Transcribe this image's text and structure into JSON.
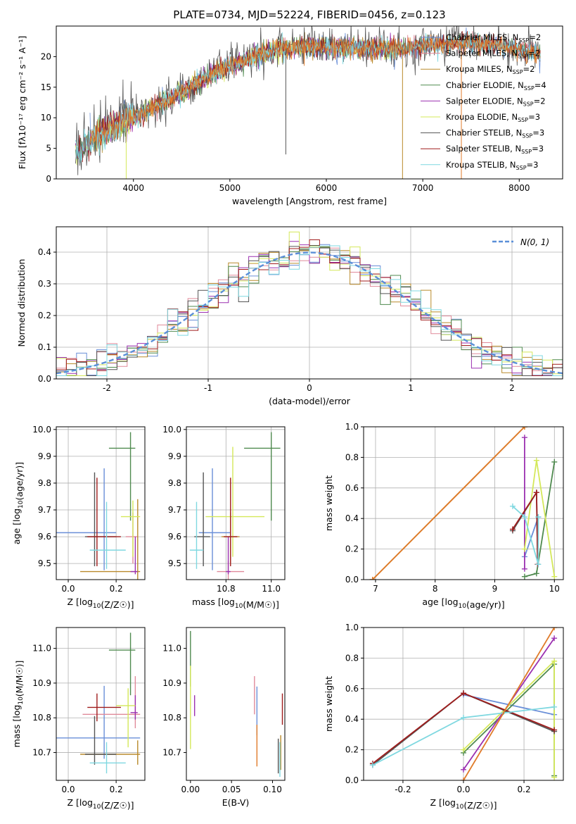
{
  "title": "PLATE=0734, MJD=52224, FIBERID=0456, z=0.123",
  "colors": {
    "Chabrier MILES": "#6a8fd8",
    "Salpeter MILES": "#e08a9a",
    "Kroupa MILES": "#b98a2b",
    "Chabrier ELODIE": "#4f8a4f",
    "Salpeter ELODIE": "#9b30b0",
    "Kroupa ELODIE": "#d4e85a",
    "Chabrier STELIB": "#555555",
    "Salpeter STELIB": "#a01c1c",
    "Kroupa STELIB": "#7fd8e0",
    "orange": "#e07b2a",
    "normal": "#5b8fd8"
  },
  "chart_data": [
    {
      "type": "line",
      "id": "spectrum",
      "xlabel": "wavelength [Angstrom, rest frame]",
      "ylabel": "Flux [fλ10⁻¹⁷ erg cm⁻² s⁻¹ A⁻¹]",
      "xlim": [
        3200,
        8450
      ],
      "ylim": [
        0,
        25
      ],
      "xticks": [
        4000,
        5000,
        6000,
        7000,
        8000
      ],
      "yticks": [
        0,
        5,
        10,
        15,
        20
      ],
      "grid": false,
      "legend_position": "right",
      "legend": [
        {
          "label": "Chabrier MILES, N_SSP=2",
          "color": "Chabrier MILES"
        },
        {
          "label": "Salpeter MILES, N_SSP=2",
          "color": "Salpeter MILES"
        },
        {
          "label": "Kroupa MILES, N_SSP=2",
          "color": "Kroupa MILES"
        },
        {
          "label": "Chabrier ELODIE, N_SSP=4",
          "color": "Chabrier ELODIE"
        },
        {
          "label": "Salpeter ELODIE, N_SSP=2",
          "color": "Salpeter ELODIE"
        },
        {
          "label": "Kroupa ELODIE, N_SSP=3",
          "color": "Kroupa ELODIE"
        },
        {
          "label": "Chabrier STELIB, N_SSP=3",
          "color": "Chabrier STELIB"
        },
        {
          "label": "Salpeter STELIB, N_SSP=3",
          "color": "Salpeter STELIB"
        },
        {
          "label": "Kroupa STELIB, N_SSP=3",
          "color": "Kroupa STELIB"
        }
      ],
      "continuum": [
        [
          3400,
          4.2
        ],
        [
          3600,
          6.8
        ],
        [
          3800,
          8.6
        ],
        [
          3950,
          9.8
        ],
        [
          4100,
          10.8
        ],
        [
          4300,
          12.4
        ],
        [
          4500,
          14.2
        ],
        [
          4700,
          16.0
        ],
        [
          4900,
          17.8
        ],
        [
          5100,
          19.0
        ],
        [
          5300,
          20.3
        ],
        [
          5500,
          21.2
        ],
        [
          5800,
          21.6
        ],
        [
          6000,
          21.5
        ],
        [
          6200,
          21.4
        ],
        [
          6500,
          21.2
        ],
        [
          6800,
          21.3
        ],
        [
          7000,
          21.9
        ],
        [
          7200,
          22.0
        ],
        [
          7400,
          22.3
        ],
        [
          7700,
          22.0
        ],
        [
          8000,
          21.2
        ],
        [
          8200,
          20.5
        ]
      ],
      "features": [
        {
          "x": 3925,
          "y": 0,
          "series": "Kroupa ELODIE"
        },
        {
          "x": 5580,
          "y": 4,
          "series": "Chabrier STELIB"
        },
        {
          "x": 6790,
          "y": 0,
          "series": "Kroupa MILES"
        },
        {
          "x": 7400,
          "y": 0,
          "series": "orange"
        }
      ]
    },
    {
      "type": "line",
      "id": "residuals",
      "xlabel": "(data-model)/error",
      "ylabel": "Normed distribution",
      "xlim": [
        -2.5,
        2.5
      ],
      "ylim": [
        0,
        0.48
      ],
      "xticks": [
        -2,
        -1,
        0,
        1,
        2
      ],
      "yticks": [
        0.0,
        0.1,
        0.2,
        0.3,
        0.4
      ],
      "grid": true,
      "legend_position": "top-right",
      "legend": [
        {
          "label": "N(0, 1)",
          "color": "normal"
        }
      ],
      "step": 0.1,
      "series": [
        "Chabrier MILES",
        "Salpeter MILES",
        "Kroupa MILES",
        "Chabrier ELODIE",
        "Salpeter ELODIE",
        "Kroupa ELODIE",
        "Chabrier STELIB",
        "Salpeter STELIB",
        "Kroupa STELIB"
      ]
    },
    {
      "type": "scatter",
      "id": "age-vs-Z",
      "xlabel": "Z [log10(Z/Z☉)]",
      "ylabel": "age  [log10(age/yr)]",
      "xlim": [
        -0.05,
        0.32
      ],
      "ylim": [
        9.44,
        10.01
      ],
      "xticks": [
        0.0,
        0.2
      ],
      "yticks": [
        9.5,
        9.6,
        9.7,
        9.8,
        9.9,
        10.0
      ],
      "grid": true,
      "points": [
        {
          "series": "Chabrier MILES",
          "x": 0.15,
          "y": 9.615,
          "xerr": [
            0.2,
            0.05
          ],
          "yerr": [
            0.14,
            0.24
          ]
        },
        {
          "series": "Salpeter MILES",
          "x": 0.27,
          "y": 9.6,
          "xerr": [
            0.03,
            0.02
          ],
          "yerr": [
            0.1,
            0.09
          ]
        },
        {
          "series": "Kroupa MILES",
          "x": 0.29,
          "y": 9.47,
          "xerr": [
            0.24,
            0.01
          ],
          "yerr": [
            0.03,
            0.27
          ]
        },
        {
          "series": "Chabrier ELODIE",
          "x": 0.26,
          "y": 9.93,
          "xerr": [
            0.09,
            0.02
          ],
          "yerr": [
            0.27,
            0.06
          ]
        },
        {
          "series": "Salpeter ELODIE",
          "x": 0.28,
          "y": 9.47,
          "xerr": [
            0.02,
            0.01
          ],
          "yerr": [
            0.01,
            0.13
          ]
        },
        {
          "series": "Kroupa ELODIE",
          "x": 0.27,
          "y": 9.675,
          "xerr": [
            0.05,
            0.03
          ],
          "yerr": [
            0.15,
            0.06
          ]
        },
        {
          "series": "Chabrier STELIB",
          "x": 0.11,
          "y": 9.6,
          "xerr": [
            0.04,
            0.09
          ],
          "yerr": [
            0.11,
            0.24
          ]
        },
        {
          "series": "Salpeter STELIB",
          "x": 0.12,
          "y": 9.6,
          "xerr": [
            0.04,
            0.1
          ],
          "yerr": [
            0.11,
            0.22
          ]
        },
        {
          "series": "Kroupa STELIB",
          "x": 0.16,
          "y": 9.55,
          "xerr": [
            0.07,
            0.08
          ],
          "yerr": [
            0.07,
            0.18
          ]
        }
      ]
    },
    {
      "type": "scatter",
      "id": "age-vs-mass",
      "xlabel": "mass [log10(M/M☉)]",
      "ylabel": "",
      "xlim": [
        10.625,
        11.06
      ],
      "ylim": [
        9.44,
        10.01
      ],
      "xticks": [
        10.8,
        11.0
      ],
      "yticks": [
        9.5,
        9.6,
        9.7,
        9.8,
        9.9,
        10.0
      ],
      "grid": true,
      "points": [
        {
          "series": "Chabrier MILES",
          "x": 10.74,
          "y": 9.615,
          "xerr": [
            0.06,
            0.08
          ],
          "yerr": [
            0.14,
            0.24
          ]
        },
        {
          "series": "Salpeter MILES",
          "x": 10.81,
          "y": 9.47,
          "xerr": [
            0.05,
            0.07
          ],
          "yerr": [
            0.03,
            0.04
          ]
        },
        {
          "series": "Kroupa MILES",
          "x": 10.82,
          "y": 9.6,
          "xerr": [
            0.04,
            0.04
          ],
          "yerr": [
            0.1,
            0.09
          ]
        },
        {
          "series": "Chabrier ELODIE",
          "x": 11.0,
          "y": 9.93,
          "xerr": [
            0.12,
            0.04
          ],
          "yerr": [
            0.27,
            0.06
          ]
        },
        {
          "series": "Salpeter ELODIE",
          "x": 10.81,
          "y": 9.47,
          "xerr": [
            0.01,
            0.01
          ],
          "yerr": [
            0.01,
            0.13
          ]
        },
        {
          "series": "Kroupa ELODIE",
          "x": 10.83,
          "y": 9.675,
          "xerr": [
            0.12,
            0.14
          ],
          "yerr": [
            0.15,
            0.26
          ]
        },
        {
          "series": "Chabrier STELIB",
          "x": 10.7,
          "y": 9.6,
          "xerr": [
            0.04,
            0.03
          ],
          "yerr": [
            0.11,
            0.24
          ]
        },
        {
          "series": "Salpeter STELIB",
          "x": 10.82,
          "y": 9.6,
          "xerr": [
            0.03,
            0.03
          ],
          "yerr": [
            0.11,
            0.22
          ]
        },
        {
          "series": "Kroupa STELIB",
          "x": 10.67,
          "y": 9.55,
          "xerr": [
            0.03,
            0.03
          ],
          "yerr": [
            0.07,
            0.18
          ]
        }
      ]
    },
    {
      "type": "line",
      "id": "weight-vs-age",
      "xlabel": "age  [log10(age/yr)]",
      "ylabel": "mass weight",
      "xlim": [
        6.8,
        10.15
      ],
      "ylim": [
        0,
        1
      ],
      "xticks": [
        7,
        8,
        9,
        10
      ],
      "yticks": [
        0.0,
        0.2,
        0.4,
        0.6,
        0.8,
        1.0
      ],
      "grid": true,
      "series": [
        {
          "name": "Chabrier MILES",
          "x": [
            9.5,
            9.73
          ],
          "y": [
            0.15,
            0.41
          ]
        },
        {
          "name": "Kroupa MILES",
          "x": [
            6.95,
            9.5
          ],
          "y": [
            0.0,
            1.0
          ]
        },
        {
          "name": "Chabrier ELODIE",
          "x": [
            9.5,
            9.7,
            10.0
          ],
          "y": [
            0.02,
            0.04,
            0.77
          ]
        },
        {
          "name": "Salpeter ELODIE",
          "x": [
            9.5,
            9.5
          ],
          "y": [
            0.07,
            0.93
          ]
        },
        {
          "name": "Kroupa ELODIE",
          "x": [
            9.5,
            9.7,
            10.0
          ],
          "y": [
            0.2,
            0.78,
            0.02
          ]
        },
        {
          "name": "Chabrier STELIB",
          "x": [
            9.3,
            9.7,
            9.72
          ],
          "y": [
            0.32,
            0.57,
            0.1
          ]
        },
        {
          "name": "Salpeter STELIB",
          "x": [
            9.3,
            9.7,
            9.72
          ],
          "y": [
            0.33,
            0.57,
            0.1
          ]
        },
        {
          "name": "Kroupa STELIB",
          "x": [
            9.3,
            9.5,
            9.73,
            9.73
          ],
          "y": [
            0.48,
            0.41,
            0.1,
            0.41
          ]
        },
        {
          "name": "orange",
          "x": [
            6.95,
            9.5
          ],
          "y": [
            0.0,
            1.0
          ]
        }
      ]
    },
    {
      "type": "scatter",
      "id": "mass-vs-Z",
      "xlabel": "Z [log10(Z/Z☉)]",
      "ylabel": "mass [log10(M/M☉)]",
      "xlim": [
        -0.05,
        0.32
      ],
      "ylim": [
        10.62,
        11.06
      ],
      "xticks": [
        0.0,
        0.2
      ],
      "yticks": [
        10.7,
        10.8,
        10.9,
        11.0
      ],
      "grid": true,
      "points": [
        {
          "series": "Chabrier MILES",
          "x": 0.15,
          "y": 10.742,
          "xerr": [
            0.2,
            0.15
          ],
          "yerr": [
            0.06,
            0.15
          ]
        },
        {
          "series": "Salpeter MILES",
          "x": 0.28,
          "y": 10.81,
          "xerr": [
            0.22,
            0.02
          ],
          "yerr": [
            0.04,
            0.11
          ]
        },
        {
          "series": "Kroupa MILES",
          "x": 0.29,
          "y": 10.695,
          "xerr": [
            0.24,
            0.01
          ],
          "yerr": [
            0.03,
            0.04
          ]
        },
        {
          "series": "Chabrier ELODIE",
          "x": 0.26,
          "y": 10.995,
          "xerr": [
            0.09,
            0.02
          ],
          "yerr": [
            0.13,
            0.05
          ]
        },
        {
          "series": "Salpeter ELODIE",
          "x": 0.28,
          "y": 10.815,
          "xerr": [
            0.02,
            0.01
          ],
          "yerr": [
            0.02,
            0.05
          ]
        },
        {
          "series": "Kroupa ELODIE",
          "x": 0.25,
          "y": 10.835,
          "xerr": [
            0.05,
            0.03
          ],
          "yerr": [
            0.12,
            0.05
          ]
        },
        {
          "series": "Chabrier STELIB",
          "x": 0.11,
          "y": 10.695,
          "xerr": [
            0.04,
            0.09
          ],
          "yerr": [
            0.03,
            0.11
          ]
        },
        {
          "series": "Salpeter STELIB",
          "x": 0.12,
          "y": 10.83,
          "xerr": [
            0.04,
            0.1
          ],
          "yerr": [
            0.04,
            0.04
          ]
        },
        {
          "series": "Kroupa STELIB",
          "x": 0.16,
          "y": 10.67,
          "xerr": [
            0.07,
            0.08
          ],
          "yerr": [
            0.03,
            0.06
          ]
        }
      ]
    },
    {
      "type": "scatter",
      "id": "mass-vs-ebv",
      "xlabel": "E(B-V)",
      "ylabel": "",
      "xlim": [
        -0.005,
        0.115
      ],
      "ylim": [
        10.62,
        11.06
      ],
      "xticks": [
        0.0,
        0.05,
        0.1
      ],
      "yticks": [
        10.7,
        10.8,
        10.9,
        11.0
      ],
      "grid": false,
      "points": [
        {
          "series": "Chabrier MILES",
          "x": 0.081,
          "y": 10.79,
          "yerr": [
            0.04,
            0.1
          ]
        },
        {
          "series": "Salpeter MILES",
          "x": 0.078,
          "y": 10.86,
          "yerr": [
            0.05,
            0.06
          ]
        },
        {
          "series": "Kroupa MILES",
          "x": 0.11,
          "y": 10.7,
          "yerr": [
            0.05,
            0.05
          ]
        },
        {
          "series": "Chabrier ELODIE",
          "x": 0.0,
          "y": 10.95,
          "yerr": [
            0.06,
            0.1
          ]
        },
        {
          "series": "Salpeter ELODIE",
          "x": 0.005,
          "y": 10.835,
          "yerr": [
            0.03,
            0.03
          ]
        },
        {
          "series": "Kroupa ELODIE",
          "x": 0.0,
          "y": 10.8,
          "yerr": [
            0.09,
            0.15
          ]
        },
        {
          "series": "Chabrier STELIB",
          "x": 0.107,
          "y": 10.69,
          "yerr": [
            0.05,
            0.05
          ]
        },
        {
          "series": "Salpeter STELIB",
          "x": 0.112,
          "y": 10.82,
          "yerr": [
            0.04,
            0.05
          ]
        },
        {
          "series": "Kroupa STELIB",
          "x": 0.109,
          "y": 10.68,
          "yerr": [
            0.05,
            0.05
          ]
        },
        {
          "series": "orange",
          "x": 0.081,
          "y": 10.72,
          "yerr": [
            0.06,
            0.06
          ]
        }
      ]
    },
    {
      "type": "line",
      "id": "weight-vs-Z",
      "xlabel": "Z [log10(Z/Z☉)]",
      "ylabel": "mass weight",
      "xlim": [
        -0.33,
        0.33
      ],
      "ylim": [
        0,
        1
      ],
      "xticks": [
        -0.2,
        0.0,
        0.2
      ],
      "yticks": [
        0.0,
        0.2,
        0.4,
        0.6,
        0.8,
        1.0
      ],
      "grid": true,
      "series": [
        {
          "name": "Chabrier MILES",
          "x": [
            0.0,
            0.3
          ],
          "y": [
            0.56,
            0.43
          ]
        },
        {
          "name": "Chabrier ELODIE",
          "x": [
            0.0,
            0.3,
            0.3
          ],
          "y": [
            0.18,
            0.76,
            0.03
          ]
        },
        {
          "name": "Salpeter ELODIE",
          "x": [
            0.0,
            0.3
          ],
          "y": [
            0.07,
            0.93
          ]
        },
        {
          "name": "Kroupa ELODIE",
          "x": [
            0.0,
            0.3,
            0.3
          ],
          "y": [
            0.2,
            0.78,
            0.02
          ]
        },
        {
          "name": "Chabrier STELIB",
          "x": [
            -0.3,
            0.0,
            0.3
          ],
          "y": [
            0.1,
            0.57,
            0.32
          ]
        },
        {
          "name": "Salpeter STELIB",
          "x": [
            -0.3,
            0.0,
            0.3
          ],
          "y": [
            0.11,
            0.57,
            0.33
          ]
        },
        {
          "name": "Kroupa STELIB",
          "x": [
            -0.3,
            0.0,
            0.3
          ],
          "y": [
            0.1,
            0.41,
            0.48
          ]
        },
        {
          "name": "orange",
          "x": [
            0.0,
            0.3
          ],
          "y": [
            0.0,
            1.0
          ]
        }
      ]
    }
  ]
}
